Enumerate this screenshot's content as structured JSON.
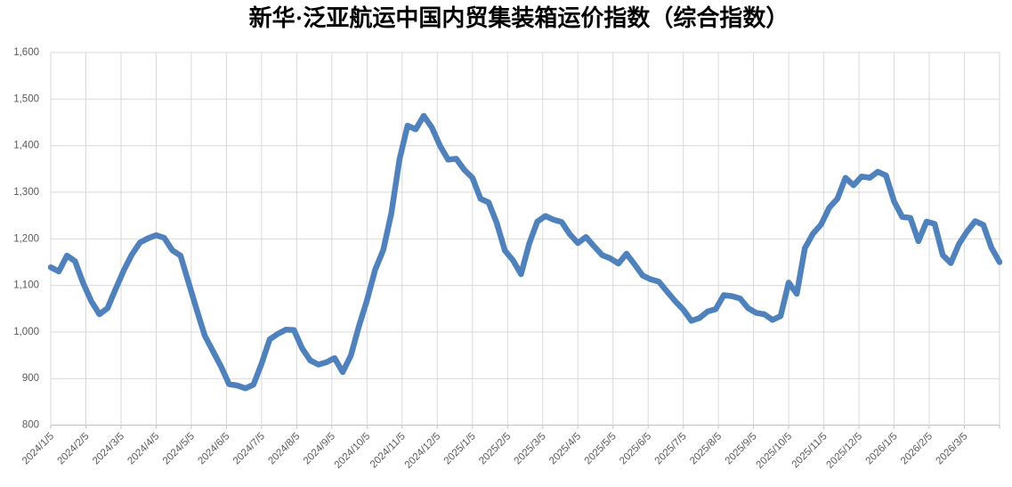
{
  "chart_data": {
    "type": "line",
    "title": "新华·泛亚航运中国内贸集装箱运价指数（综合指数）",
    "legend": "none",
    "grid": "both",
    "x_axis": {
      "tick_labels": [
        "2024/1/5",
        "2024/2/5",
        "2024/3/5",
        "2024/4/5",
        "2024/5/5",
        "2024/6/5",
        "2024/7/5",
        "2024/8/5",
        "2024/9/5",
        "2024/10/5",
        "2024/11/5",
        "2024/12/5",
        "2025/1/5",
        "2025/2/5",
        "2025/3/5",
        "2025/4/5",
        "2025/5/5",
        "2025/6/5",
        "2025/7/5",
        "2025/8/5",
        "2025/9/5",
        "2025/10/5",
        "2025/11/5",
        "2025/12/5",
        "2026/1/5",
        "2026/2/5",
        "2026/3/5"
      ],
      "label_rotation_deg": -45
    },
    "y_axis": {
      "range": [
        800,
        1600
      ],
      "ticks": [
        800,
        900,
        1000,
        1100,
        1200,
        1300,
        1400,
        1500,
        1600
      ],
      "tick_labels": [
        "800",
        "900",
        "1,000",
        "1,100",
        "1,200",
        "1,300",
        "1,400",
        "1,500",
        "1,600"
      ]
    },
    "series": [
      {
        "name": "综合指数",
        "start_label": "2024/1/5",
        "cadence": "weekly",
        "values": [
          1139,
          1130,
          1164,
          1152,
          1105,
          1066,
          1038,
          1051,
          1092,
          1132,
          1166,
          1192,
          1201,
          1208,
          1202,
          1175,
          1164,
          1106,
          1048,
          992,
          959,
          926,
          888,
          885,
          879,
          887,
          932,
          984,
          996,
          1005,
          1004,
          965,
          939,
          930,
          935,
          944,
          914,
          949,
          1012,
          1068,
          1133,
          1176,
          1255,
          1370,
          1443,
          1435,
          1464,
          1439,
          1400,
          1370,
          1372,
          1348,
          1331,
          1286,
          1278,
          1234,
          1175,
          1154,
          1124,
          1190,
          1237,
          1249,
          1241,
          1236,
          1210,
          1191,
          1204,
          1184,
          1165,
          1158,
          1147,
          1168,
          1145,
          1121,
          1113,
          1108,
          1087,
          1066,
          1048,
          1024,
          1030,
          1044,
          1049,
          1079,
          1077,
          1072,
          1051,
          1041,
          1038,
          1026,
          1034,
          1106,
          1082,
          1180,
          1211,
          1231,
          1267,
          1286,
          1331,
          1315,
          1334,
          1331,
          1344,
          1336,
          1280,
          1247,
          1245,
          1195,
          1237,
          1232,
          1165,
          1148,
          1189,
          1216,
          1238,
          1230,
          1181,
          1150
        ]
      }
    ],
    "colors": {
      "line": "#4F81BD",
      "gridline": "#D9D9D9",
      "axis_line": "#BFBFBF",
      "tick_label": "#595959",
      "title": "#000000",
      "background": "#FFFFFF"
    }
  }
}
